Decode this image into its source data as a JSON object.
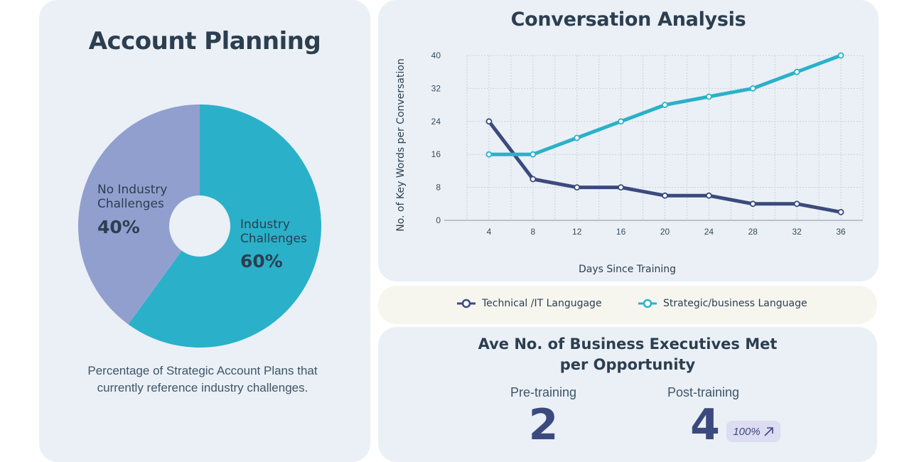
{
  "account_planning": {
    "title": "Account Planning",
    "caption": "Percentage of Strategic Account Plans that currently reference industry challenges.",
    "slices": [
      {
        "name_line1": "Industry",
        "name_line2": "Challenges",
        "value": 60,
        "label": "60%",
        "color": "#2ab1c9"
      },
      {
        "name_line1": "No Industry",
        "name_line2": "Challenges",
        "value": 40,
        "label": "40%",
        "color": "#919fcf"
      }
    ]
  },
  "conversation": {
    "title": "Conversation Analysis"
  },
  "legend": {
    "technical": "Technical /IT Langugage",
    "strategic": "Strategic/business Language"
  },
  "executives": {
    "title_line1": "Ave No. of Business Executives Met",
    "title_line2": "per Opportunity",
    "pre_label": "Pre-training",
    "pre_value": "2",
    "post_label": "Post-training",
    "post_value": "4",
    "change_badge": "100%",
    "change_icon": "arrow-up-right-icon"
  },
  "chart_data": [
    {
      "type": "pie",
      "title": "Account Planning",
      "categories": [
        "Industry Challenges",
        "No Industry Challenges"
      ],
      "values": [
        60,
        40
      ],
      "colors": [
        "#2ab1c9",
        "#919fcf"
      ],
      "donut": true
    },
    {
      "type": "line",
      "title": "Conversation Analysis",
      "xlabel": "Days Since Training",
      "ylabel": "No. of Key Words per Conversation",
      "x": [
        4,
        8,
        12,
        16,
        20,
        24,
        28,
        32,
        36
      ],
      "xlim": [
        2,
        38
      ],
      "ylim": [
        0,
        40
      ],
      "yticks": [
        0,
        8,
        16,
        24,
        32,
        40
      ],
      "grid": true,
      "legend_position": "bottom",
      "series": [
        {
          "name": "Technical /IT Langugage",
          "color": "#3b4a7e",
          "values": [
            24,
            10,
            8,
            8,
            6,
            6,
            4,
            4,
            2
          ]
        },
        {
          "name": "Strategic/business Language",
          "color": "#2ab1c9",
          "values": [
            16,
            16,
            20,
            24,
            28,
            30,
            32,
            36,
            40
          ]
        }
      ]
    }
  ]
}
